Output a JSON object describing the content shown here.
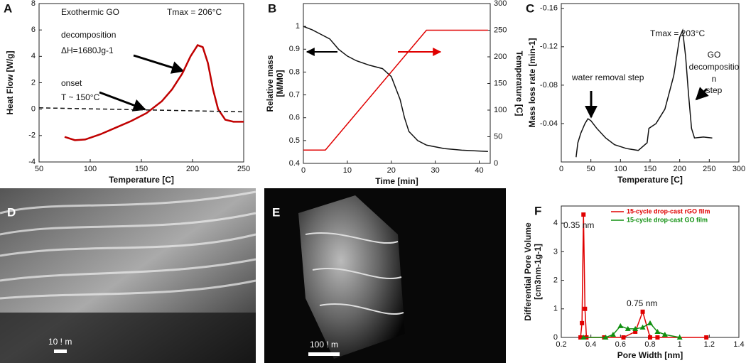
{
  "chart_data": [
    {
      "type": "line",
      "panel": "A",
      "xlabel": "Temperature [C]",
      "ylabel": [
        "Heat Flow [W/g]"
      ],
      "xlim": [
        50,
        250
      ],
      "xticks": [
        50,
        100,
        150,
        200,
        250
      ],
      "ylim": [
        -4,
        8
      ],
      "yticks": [
        -4,
        -2,
        0,
        2,
        4,
        6,
        8
      ],
      "annotations": [
        "Exothermic GO",
        "decomposition",
        "ΔH=1680Jg-1",
        "Tmax = 206°C",
        "onset",
        "T ~ 150°C"
      ],
      "series": [
        {
          "color": "#c00000",
          "x": [
            75,
            85,
            95,
            110,
            125,
            140,
            155,
            170,
            180,
            190,
            198,
            205,
            210,
            215,
            220,
            225,
            232,
            240,
            250
          ],
          "values": [
            -2.1,
            -2.35,
            -2.3,
            -1.9,
            -1.4,
            -0.9,
            -0.3,
            0.6,
            1.5,
            2.7,
            4.0,
            4.85,
            4.7,
            3.5,
            1.5,
            0,
            -0.8,
            -0.95,
            -0.95
          ]
        },
        {
          "color": "#111111",
          "dashed": true,
          "x": [
            50,
            250
          ],
          "values": [
            0.1,
            -0.2
          ]
        }
      ]
    },
    {
      "type": "line",
      "panel": "B",
      "xlabel": "Time [min]",
      "ylabel": [
        "Relative mass",
        "[M/M0]"
      ],
      "y2label": "Temperature [C]",
      "xlim": [
        0,
        42.5
      ],
      "xticks": [
        0,
        10,
        20,
        30,
        40
      ],
      "ylim": [
        0.4,
        1.1
      ],
      "yticks": [
        0.4,
        0.5,
        0.6,
        0.7,
        0.8,
        0.9,
        1
      ],
      "y2lim": [
        0,
        300
      ],
      "y2ticks": [
        0,
        50,
        100,
        150,
        200,
        250,
        300
      ],
      "series": [
        {
          "color": "#111111",
          "x": [
            0,
            2,
            4,
            6,
            8,
            10,
            12,
            15,
            18,
            20,
            22,
            23,
            24,
            26,
            28,
            32,
            36,
            42
          ],
          "values": [
            1,
            0.985,
            0.965,
            0.945,
            0.9,
            0.87,
            0.85,
            0.83,
            0.815,
            0.78,
            0.68,
            0.6,
            0.54,
            0.5,
            0.48,
            0.465,
            0.458,
            0.452
          ]
        },
        {
          "color": "#e00000",
          "axis": "y2",
          "x": [
            0,
            5,
            28,
            42
          ],
          "values": [
            25,
            25,
            250,
            250
          ]
        }
      ]
    },
    {
      "type": "line",
      "panel": "C",
      "xlabel": "Temperature [C]",
      "ylabel": [
        "Mass loss rate [min-1]"
      ],
      "xlim": [
        0,
        300
      ],
      "xticks": [
        0,
        50,
        100,
        150,
        200,
        250,
        300
      ],
      "ylim": [
        0,
        -0.165
      ],
      "yticks": [
        -0.16,
        -0.12,
        -0.08,
        -0.04
      ],
      "annotations": [
        "Tmax = 203°C",
        "water removal step",
        "GO",
        "decompositio",
        "n",
        "step"
      ],
      "series": [
        {
          "color": "#111111",
          "x": [
            25,
            28,
            33,
            40,
            45,
            50,
            60,
            75,
            90,
            110,
            130,
            145,
            148,
            160,
            175,
            190,
            200,
            205,
            210,
            215,
            220,
            225,
            240,
            255
          ],
          "values": [
            -0.005,
            -0.02,
            -0.03,
            -0.04,
            -0.045,
            -0.043,
            -0.035,
            -0.025,
            -0.018,
            -0.014,
            -0.012,
            -0.02,
            -0.035,
            -0.04,
            -0.055,
            -0.09,
            -0.13,
            -0.137,
            -0.11,
            -0.07,
            -0.035,
            -0.025,
            -0.026,
            -0.025
          ]
        }
      ]
    },
    {
      "type": "line",
      "panel": "F",
      "xlabel": "Pore Width [nm]",
      "ylabel": [
        "Differential Pore Volume",
        "[cm3nm-1g-1]"
      ],
      "xlim": [
        0.2,
        1.4
      ],
      "xticks": [
        0.2,
        0.4,
        0.6,
        0.8,
        1,
        1.2,
        1.4
      ],
      "ylim": [
        0,
        4.6
      ],
      "yticks": [
        0,
        1,
        2,
        3,
        4
      ],
      "annotations": [
        "0.35 nm",
        "0.75 nm"
      ],
      "legend": "top-right",
      "markers": true,
      "series": [
        {
          "name": "15-cycle drop-cast rGO film",
          "color": "#e00000",
          "marker": "square",
          "x": [
            0.33,
            0.34,
            0.35,
            0.36,
            0.37,
            0.49,
            0.62,
            0.7,
            0.75,
            0.8,
            0.85,
            1.18
          ],
          "values": [
            0,
            0.5,
            4.3,
            1,
            0,
            0,
            0,
            0.2,
            0.9,
            0,
            0,
            0
          ]
        },
        {
          "name": "15-cycle drop-cast GO film",
          "color": "#109010",
          "marker": "triangle",
          "x": [
            0.35,
            0.5,
            0.55,
            0.6,
            0.65,
            0.7,
            0.75,
            0.8,
            0.85,
            0.9,
            1.0
          ],
          "values": [
            0,
            0,
            0.1,
            0.4,
            0.3,
            0.3,
            0.35,
            0.5,
            0.2,
            0.1,
            0
          ]
        }
      ]
    }
  ],
  "images": [
    {
      "panel": "D",
      "scale_bar": "10 ! m"
    },
    {
      "panel": "E",
      "scale_bar": "100 ! m"
    }
  ]
}
